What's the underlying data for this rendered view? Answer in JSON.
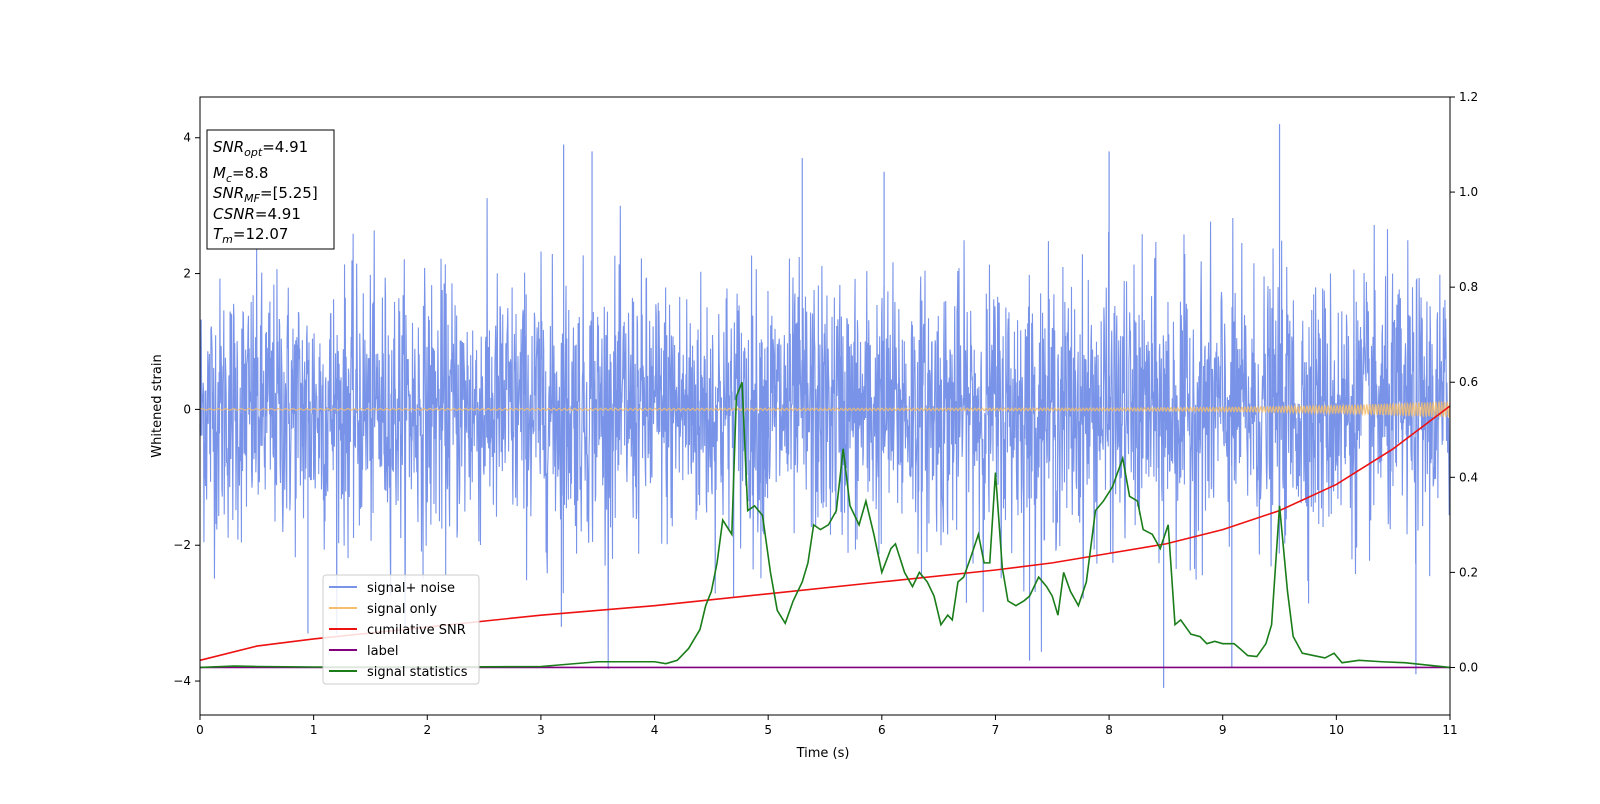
{
  "chart_data": {
    "type": "line",
    "title": "",
    "xlabel": "Time (s)",
    "ylabel": "Whitened strain",
    "xlim": [
      0,
      11
    ],
    "ylim": [
      -4.5,
      4.6
    ],
    "y2lim": [
      -0.1,
      1.2
    ],
    "xticks": [
      "0",
      "1",
      "2",
      "3",
      "4",
      "5",
      "6",
      "7",
      "8",
      "9",
      "10",
      "11"
    ],
    "yticks": [
      "-4",
      "-2",
      "0",
      "2",
      "4"
    ],
    "y2ticks": [
      "0.0",
      "0.2",
      "0.4",
      "0.6",
      "0.8",
      "1.0",
      "1.2"
    ],
    "grid": false,
    "legend_placement": "lower-left",
    "annotation": {
      "snr_opt": {
        "label": "SNR",
        "sub": "opt",
        "value": "=4.91"
      },
      "mc": {
        "label": "M",
        "sub": "c",
        "value": "=8.8"
      },
      "snr_mf": {
        "label": "SNR",
        "sub": "MF",
        "value": "=[5.25]"
      },
      "csnr": {
        "label": "CSNR",
        "value": "=4.91"
      },
      "tm": {
        "label": "T",
        "sub": "m",
        "value": "=12.07"
      }
    },
    "series": [
      {
        "name": "signal+ noise",
        "color": "#7893e8",
        "axis": "left",
        "style": "dense noise approximately within ±2.5, occasional spikes to ±4",
        "spikes": [
          {
            "x": 0.95,
            "y": -3.3
          },
          {
            "x": 3.2,
            "y": 3.9
          },
          {
            "x": 3.45,
            "y": 3.8
          },
          {
            "x": 5.3,
            "y": 3.7
          },
          {
            "x": 7.3,
            "y": -3.7
          },
          {
            "x": 8.0,
            "y": 3.8
          },
          {
            "x": 8.48,
            "y": -4.1
          },
          {
            "x": 9.5,
            "y": 4.2
          },
          {
            "x": 9.08,
            "y": -3.8
          },
          {
            "x": 10.7,
            "y": -3.9
          },
          {
            "x": 3.18,
            "y": -3.2
          },
          {
            "x": 6.02,
            "y": 3.5
          }
        ]
      },
      {
        "name": "signal only",
        "color": "#f5be6f",
        "axis": "left",
        "style": "chirp near 0 with amplitude growing from ~0.01 to ~0.12",
        "x": [
          0,
          8,
          9,
          10,
          10.5,
          11
        ],
        "amplitude": [
          0.01,
          0.02,
          0.03,
          0.06,
          0.09,
          0.12
        ]
      },
      {
        "name": "cumilative SNR",
        "color": "#ee1111",
        "axis": "right",
        "x": [
          0,
          0.5,
          1,
          2,
          3,
          4,
          5,
          6,
          7,
          7.5,
          8,
          8.5,
          9,
          9.5,
          10,
          10.5,
          11
        ],
        "values": [
          0.015,
          0.045,
          0.06,
          0.085,
          0.11,
          0.13,
          0.155,
          0.18,
          0.205,
          0.22,
          0.24,
          0.26,
          0.29,
          0.33,
          0.385,
          0.46,
          0.55
        ]
      },
      {
        "name": "label",
        "color": "#800080",
        "axis": "right",
        "x": [
          0,
          11
        ],
        "values": [
          0,
          0
        ]
      },
      {
        "name": "signal statistics",
        "color": "#1a7d1a",
        "axis": "right",
        "x": [
          0,
          0.3,
          0.5,
          1,
          2,
          3,
          3.5,
          4,
          4.1,
          4.2,
          4.3,
          4.4,
          4.45,
          4.5,
          4.55,
          4.6,
          4.68,
          4.72,
          4.77,
          4.82,
          4.88,
          4.95,
          5.02,
          5.08,
          5.15,
          5.22,
          5.3,
          5.35,
          5.4,
          5.46,
          5.53,
          5.6,
          5.66,
          5.72,
          5.8,
          5.86,
          5.93,
          6.0,
          6.08,
          6.12,
          6.2,
          6.27,
          6.33,
          6.4,
          6.46,
          6.52,
          6.58,
          6.62,
          6.67,
          6.72,
          6.78,
          6.85,
          6.9,
          6.95,
          7.0,
          7.06,
          7.11,
          7.18,
          7.25,
          7.3,
          7.38,
          7.45,
          7.5,
          7.55,
          7.6,
          7.66,
          7.73,
          7.8,
          7.88,
          7.95,
          8.03,
          8.12,
          8.18,
          8.25,
          8.3,
          8.38,
          8.45,
          8.52,
          8.58,
          8.63,
          8.72,
          8.8,
          8.86,
          8.93,
          9.0,
          9.05,
          9.1,
          9.15,
          9.22,
          9.3,
          9.38,
          9.43,
          9.5,
          9.57,
          9.62,
          9.7,
          9.8,
          9.9,
          9.98,
          10.05,
          10.2,
          10.4,
          10.6,
          11
        ],
        "values": [
          0.0,
          0.003,
          0.002,
          0.001,
          0.001,
          0.002,
          0.012,
          0.012,
          0.008,
          0.015,
          0.04,
          0.08,
          0.13,
          0.16,
          0.22,
          0.31,
          0.28,
          0.57,
          0.6,
          0.33,
          0.34,
          0.32,
          0.2,
          0.12,
          0.093,
          0.14,
          0.18,
          0.22,
          0.3,
          0.29,
          0.3,
          0.33,
          0.46,
          0.34,
          0.3,
          0.35,
          0.28,
          0.2,
          0.25,
          0.26,
          0.2,
          0.17,
          0.2,
          0.18,
          0.15,
          0.09,
          0.11,
          0.1,
          0.18,
          0.19,
          0.23,
          0.28,
          0.22,
          0.22,
          0.41,
          0.21,
          0.14,
          0.13,
          0.14,
          0.15,
          0.19,
          0.17,
          0.15,
          0.11,
          0.2,
          0.16,
          0.13,
          0.18,
          0.33,
          0.35,
          0.38,
          0.44,
          0.36,
          0.35,
          0.29,
          0.28,
          0.25,
          0.3,
          0.09,
          0.1,
          0.07,
          0.065,
          0.05,
          0.055,
          0.05,
          0.05,
          0.05,
          0.04,
          0.025,
          0.023,
          0.05,
          0.09,
          0.34,
          0.16,
          0.065,
          0.03,
          0.025,
          0.02,
          0.03,
          0.01,
          0.015,
          0.012,
          0.01,
          0.0
        ]
      }
    ]
  }
}
